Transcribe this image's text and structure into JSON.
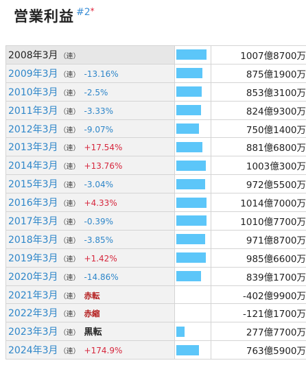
{
  "section": {
    "title": "営業利益",
    "note_hash": "#2",
    "note_star": "*"
  },
  "rows": [
    {
      "year": "2008年3月",
      "cons": "（連）",
      "change": "",
      "change_type": "none",
      "value": "1007億8700万",
      "value_oku": 1007.87
    },
    {
      "year": "2009年3月",
      "cons": "（連）",
      "change": "-13.16%",
      "change_type": "neg",
      "value": "875億1900万",
      "value_oku": 875.19
    },
    {
      "year": "2010年3月",
      "cons": "（連）",
      "change": "-2.5%",
      "change_type": "neg",
      "value": "853億3100万",
      "value_oku": 853.31
    },
    {
      "year": "2011年3月",
      "cons": "（連）",
      "change": "-3.33%",
      "change_type": "neg",
      "value": "824億9300万",
      "value_oku": 824.93
    },
    {
      "year": "2012年3月",
      "cons": "（連）",
      "change": "-9.07%",
      "change_type": "neg",
      "value": "750億1400万",
      "value_oku": 750.14
    },
    {
      "year": "2013年3月",
      "cons": "（連）",
      "change": "+17.54%",
      "change_type": "pos",
      "value": "881億6800万",
      "value_oku": 881.68
    },
    {
      "year": "2014年3月",
      "cons": "（連）",
      "change": "+13.76%",
      "change_type": "pos",
      "value": "1003億300万",
      "value_oku": 1003.03
    },
    {
      "year": "2015年3月",
      "cons": "（連）",
      "change": "-3.04%",
      "change_type": "neg",
      "value": "972億5500万",
      "value_oku": 972.55
    },
    {
      "year": "2016年3月",
      "cons": "（連）",
      "change": "+4.33%",
      "change_type": "pos",
      "value": "1014億7000万",
      "value_oku": 1014.7
    },
    {
      "year": "2017年3月",
      "cons": "（連）",
      "change": "-0.39%",
      "change_type": "neg",
      "value": "1010億7700万",
      "value_oku": 1010.77
    },
    {
      "year": "2018年3月",
      "cons": "（連）",
      "change": "-3.85%",
      "change_type": "neg",
      "value": "971億8700万",
      "value_oku": 971.87
    },
    {
      "year": "2019年3月",
      "cons": "（連）",
      "change": "+1.42%",
      "change_type": "pos",
      "value": "985億6600万",
      "value_oku": 985.66
    },
    {
      "year": "2020年3月",
      "cons": "（連）",
      "change": "-14.86%",
      "change_type": "neg",
      "value": "839億1700万",
      "value_oku": 839.17
    },
    {
      "year": "2021年3月",
      "cons": "（連）",
      "change": "赤転",
      "change_type": "status-red",
      "value": "-402億9900万",
      "value_oku": -402.99
    },
    {
      "year": "2022年3月",
      "cons": "（連）",
      "change": "赤縮",
      "change_type": "status-red",
      "value": "-121億1700万",
      "value_oku": -121.17
    },
    {
      "year": "2023年3月",
      "cons": "（連）",
      "change": "黒転",
      "change_type": "status-black",
      "value": "277億7700万",
      "value_oku": 277.77
    },
    {
      "year": "2024年3月",
      "cons": "（連）",
      "change": "+174.9%",
      "change_type": "pos",
      "value": "763億5900万",
      "value_oku": 763.59
    }
  ],
  "colors": {
    "bar": "#5cc6f9",
    "link_blue": "#2e86c9",
    "positive_red": "#d6273d",
    "status_red": "#b31b1b"
  }
}
